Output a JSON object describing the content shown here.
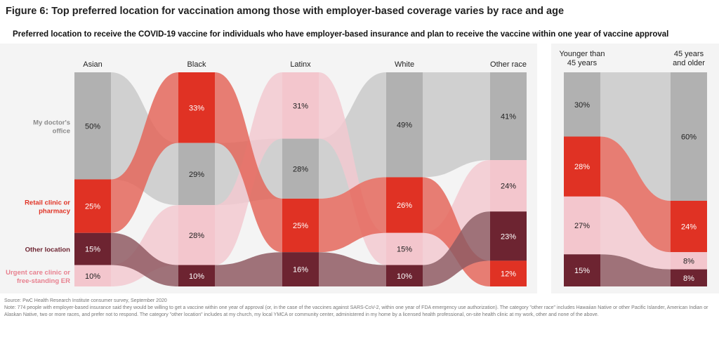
{
  "chart_data": {
    "type": "sankey",
    "title": "Figure 6: Top preferred location for vaccination among those with employer-based coverage varies by race and age",
    "subtitle": "Preferred location to receive the COVID-19 vaccine for individuals who have employer-based insurance and plan to receive the vaccine within one year of vaccine approval",
    "categories": [
      {
        "key": "doctor",
        "label": "My doctor's office",
        "bar_color": "#b1b1b1",
        "flow_color": "#c9c9c9",
        "text_color": "#222222",
        "label_color": "#8a8a8a"
      },
      {
        "key": "retail",
        "label": "Retail clinic or pharmacy",
        "bar_color": "#e03224",
        "flow_color": "#e4675c",
        "text_color": "#ffffff",
        "label_color": "#e03224"
      },
      {
        "key": "other",
        "label": "Other location",
        "bar_color": "#6d2431",
        "flow_color": "#8f5a63",
        "text_color": "#ffffff",
        "label_color": "#6d2431"
      },
      {
        "key": "urgent",
        "label": "Urgent care clinic or free-standing ER",
        "bar_color": "#f3c6cd",
        "flow_color": "#f2c9d0",
        "text_color": "#222222",
        "label_color": "#e8808f"
      }
    ],
    "panels": [
      {
        "columns": [
          {
            "label": "Asian",
            "order": [
              "doctor",
              "retail",
              "other",
              "urgent"
            ],
            "values": {
              "doctor": 50,
              "retail": 25,
              "other": 15,
              "urgent": 10
            }
          },
          {
            "label": "Black",
            "order": [
              "retail",
              "doctor",
              "urgent",
              "other"
            ],
            "values": {
              "doctor": 29,
              "retail": 33,
              "other": 10,
              "urgent": 28
            }
          },
          {
            "label": "Latinx",
            "order": [
              "urgent",
              "doctor",
              "retail",
              "other"
            ],
            "values": {
              "doctor": 28,
              "retail": 25,
              "other": 16,
              "urgent": 31
            }
          },
          {
            "label": "White",
            "order": [
              "doctor",
              "retail",
              "urgent",
              "other"
            ],
            "values": {
              "doctor": 49,
              "retail": 26,
              "other": 10,
              "urgent": 15
            }
          },
          {
            "label": "Other race",
            "order": [
              "doctor",
              "urgent",
              "other",
              "retail"
            ],
            "values": {
              "doctor": 41,
              "retail": 12,
              "other": 23,
              "urgent": 24
            }
          }
        ]
      },
      {
        "columns": [
          {
            "label": "Younger than 45 years",
            "order": [
              "doctor",
              "retail",
              "urgent",
              "other"
            ],
            "values": {
              "doctor": 30,
              "retail": 28,
              "other": 15,
              "urgent": 27
            }
          },
          {
            "label": "45 years and older",
            "order": [
              "doctor",
              "retail",
              "urgent",
              "other"
            ],
            "values": {
              "doctor": 60,
              "retail": 24,
              "other": 8,
              "urgent": 8
            }
          }
        ]
      }
    ],
    "unit": "%"
  },
  "source": "Source: PwC Health Research Institute consumer survey, September 2020",
  "note": "Note: 774 people with employer-based insurance said they would be willing to get a vaccine within one year of approval (or, in the case of the vaccines against SARS-CoV-2, within one year of FDA emergency use authorization). The category \"other race\" includes Hawaiian Native or other Pacific Islander, American Indian or Alaskan Native, two or more races, and prefer not to respond. The category \"other location\" includes at my church, my local YMCA or community center, administered in my home by a licensed health professional, on-site health clinic at my work, other and none of the above."
}
